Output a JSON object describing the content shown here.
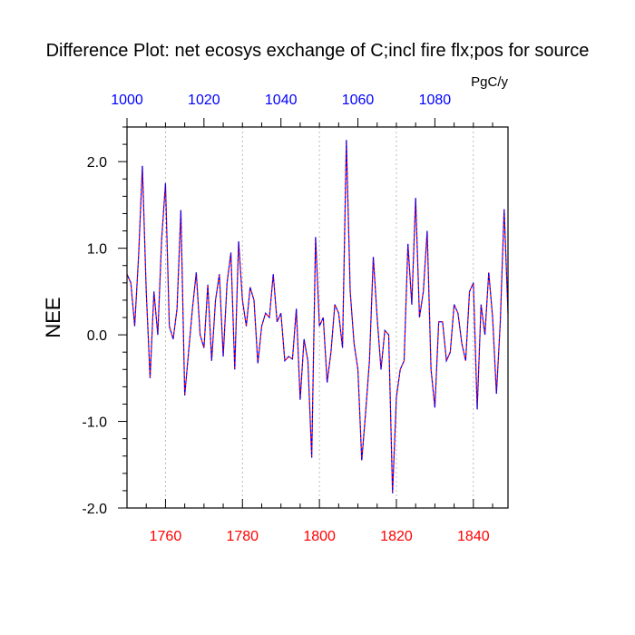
{
  "chart_data": {
    "type": "line",
    "title": "Difference Plot: net ecosys exchange of C;incl fire flx;pos for source",
    "units": "PgC/y",
    "ylabel": "NEE",
    "xlim": [
      1750,
      1849
    ],
    "ylim": [
      -2.0,
      2.4
    ],
    "y_ticks": [
      2.0,
      1.0,
      0.0,
      -1.0,
      -2.0
    ],
    "y_tick_labels": [
      "2.0",
      "1.0",
      "0.0",
      "-1.0",
      "-2.0"
    ],
    "x_bottom_ticks": [
      1760,
      1780,
      1800,
      1820,
      1840
    ],
    "x_bottom_tick_labels": [
      "1760",
      "1780",
      "1800",
      "1820",
      "1840"
    ],
    "x_top_ticks": [
      1000,
      1020,
      1040,
      1060,
      1080
    ],
    "x_top_tick_labels": [
      "1000",
      "1020",
      "1040",
      "1060",
      "1080"
    ],
    "x_top_offset": 750,
    "grid": "vertical dashed at bottom-axis major ticks",
    "colors": {
      "bottom_axis_labels": "#ff0000",
      "top_axis_labels": "#0000ff",
      "series_a": "#ff0000",
      "series_b": "#0000ff"
    },
    "x": [
      1750,
      1751,
      1752,
      1753,
      1754,
      1755,
      1756,
      1757,
      1758,
      1759,
      1760,
      1761,
      1762,
      1763,
      1764,
      1765,
      1766,
      1767,
      1768,
      1769,
      1770,
      1771,
      1772,
      1773,
      1774,
      1775,
      1776,
      1777,
      1778,
      1779,
      1780,
      1781,
      1782,
      1783,
      1784,
      1785,
      1786,
      1787,
      1788,
      1789,
      1790,
      1791,
      1792,
      1793,
      1794,
      1795,
      1796,
      1797,
      1798,
      1799,
      1800,
      1801,
      1802,
      1803,
      1804,
      1805,
      1806,
      1807,
      1808,
      1809,
      1810,
      1811,
      1812,
      1813,
      1814,
      1815,
      1816,
      1817,
      1818,
      1819,
      1820,
      1821,
      1822,
      1823,
      1824,
      1825,
      1826,
      1827,
      1828,
      1829,
      1830,
      1831,
      1832,
      1833,
      1834,
      1835,
      1836,
      1837,
      1838,
      1839,
      1840,
      1841,
      1842,
      1843,
      1844,
      1845,
      1846,
      1847,
      1848,
      1849
    ],
    "series": [
      {
        "values": [
          0.7,
          0.6,
          0.1,
          0.9,
          1.95,
          0.5,
          -0.5,
          0.5,
          0.0,
          1.1,
          1.75,
          0.1,
          -0.05,
          0.3,
          1.44,
          -0.7,
          -0.2,
          0.3,
          0.72,
          0.0,
          -0.15,
          0.58,
          -0.3,
          0.4,
          0.7,
          -0.25,
          0.6,
          0.95,
          -0.4,
          1.08,
          0.4,
          0.1,
          0.55,
          0.4,
          -0.33,
          0.1,
          0.25,
          0.2,
          0.7,
          0.15,
          0.25,
          -0.3,
          -0.25,
          -0.28,
          0.3,
          -0.75,
          -0.05,
          -0.3,
          -1.42,
          1.13,
          0.1,
          0.2,
          -0.55,
          -0.2,
          0.35,
          0.25,
          -0.15,
          2.25,
          0.5,
          -0.1,
          -0.4,
          -1.45,
          -0.9,
          -0.3,
          0.9,
          0.2,
          -0.4,
          0.05,
          0.0,
          -1.83,
          -0.72,
          -0.4,
          -0.3,
          1.05,
          0.35,
          1.58,
          0.2,
          0.5,
          1.2,
          -0.4,
          -0.84,
          0.15,
          0.15,
          -0.3,
          -0.2,
          0.35,
          0.25,
          -0.1,
          -0.3,
          0.5,
          0.6,
          -0.86,
          0.35,
          0.0,
          0.72,
          0.2,
          -0.68,
          0.15,
          1.45,
          0.25
        ]
      }
    ]
  }
}
